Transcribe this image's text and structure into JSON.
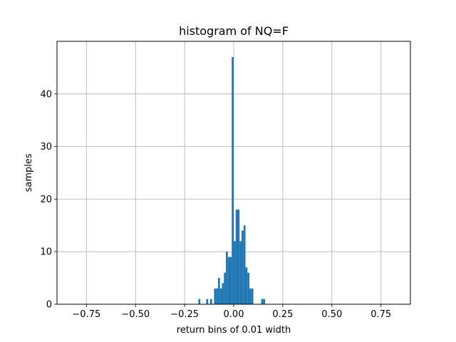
{
  "chart_data": {
    "type": "bar",
    "title": "histogram of NQ=F",
    "xlabel": "return bins of 0.01 width",
    "ylabel": "samples",
    "xlim": [
      -0.9,
      0.9
    ],
    "ylim": [
      0,
      50
    ],
    "grid": true,
    "bar_color": "#1f77b4",
    "bin_width": 0.01,
    "x_ticks": [
      {
        "value": -0.75,
        "label": "−0.75"
      },
      {
        "value": -0.5,
        "label": "−0.50"
      },
      {
        "value": -0.25,
        "label": "−0.25"
      },
      {
        "value": 0,
        "label": "0.00"
      },
      {
        "value": 0.25,
        "label": "0.25"
      },
      {
        "value": 0.5,
        "label": "0.50"
      },
      {
        "value": 0.75,
        "label": "0.75"
      }
    ],
    "y_ticks": [
      {
        "value": 0,
        "label": "0"
      },
      {
        "value": 10,
        "label": "10"
      },
      {
        "value": 20,
        "label": "20"
      },
      {
        "value": 30,
        "label": "30"
      },
      {
        "value": 40,
        "label": "40"
      }
    ],
    "bins": [
      {
        "x": -0.18,
        "y": 1
      },
      {
        "x": -0.14,
        "y": 1
      },
      {
        "x": -0.12,
        "y": 1
      },
      {
        "x": -0.1,
        "y": 3
      },
      {
        "x": -0.09,
        "y": 3
      },
      {
        "x": -0.08,
        "y": 5
      },
      {
        "x": -0.07,
        "y": 3
      },
      {
        "x": -0.06,
        "y": 4
      },
      {
        "x": -0.05,
        "y": 6
      },
      {
        "x": -0.04,
        "y": 10
      },
      {
        "x": -0.03,
        "y": 9
      },
      {
        "x": -0.02,
        "y": 9
      },
      {
        "x": -0.01,
        "y": 47
      },
      {
        "x": 0.0,
        "y": 12
      },
      {
        "x": 0.01,
        "y": 18
      },
      {
        "x": 0.02,
        "y": 18
      },
      {
        "x": 0.03,
        "y": 12
      },
      {
        "x": 0.04,
        "y": 14
      },
      {
        "x": 0.05,
        "y": 15
      },
      {
        "x": 0.06,
        "y": 7
      },
      {
        "x": 0.07,
        "y": 6
      },
      {
        "x": 0.08,
        "y": 3
      },
      {
        "x": 0.09,
        "y": 3
      },
      {
        "x": 0.14,
        "y": 1
      },
      {
        "x": 0.15,
        "y": 1
      }
    ]
  }
}
